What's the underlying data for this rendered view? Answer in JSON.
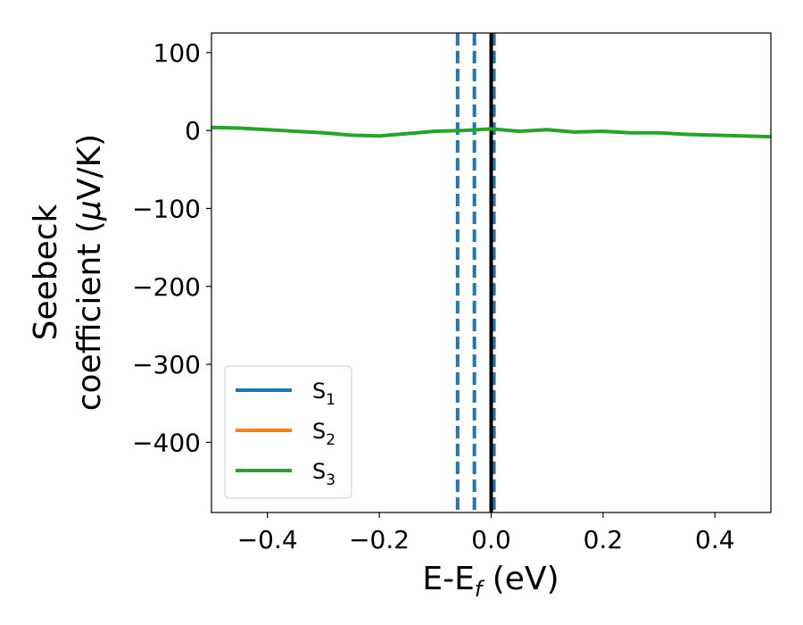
{
  "chart_data": {
    "type": "line",
    "xlabel": "E-E",
    "xlabel_sub": "f",
    "xlabel_unit": " (eV)",
    "ylabel_line1": "Seebeck",
    "ylabel_line2": "coefficient  (",
    "ylabel_mu": "μ",
    "ylabel_unit": "V/K)",
    "xlim": [
      -0.5,
      0.5
    ],
    "ylim": [
      -490,
      125
    ],
    "xticks": [
      -0.4,
      -0.2,
      0.0,
      0.2,
      0.4
    ],
    "xtick_labels": [
      "−0.4",
      "−0.2",
      "0.0",
      "0.2",
      "0.4"
    ],
    "yticks": [
      100,
      0,
      -100,
      -200,
      -300,
      -400
    ],
    "ytick_labels": [
      "100",
      "0",
      "−100",
      "−200",
      "−300",
      "−400"
    ],
    "grid": false,
    "legend_position": "lower-left",
    "series": [
      {
        "name": "S",
        "sub": "1",
        "color": "#1f77b4",
        "x": [],
        "y": []
      },
      {
        "name": "S",
        "sub": "2",
        "color": "#ff7f0e",
        "x": [],
        "y": []
      },
      {
        "name": "S",
        "sub": "3",
        "color": "#2ca02c",
        "x": [
          -0.5,
          -0.45,
          -0.4,
          -0.35,
          -0.3,
          -0.25,
          -0.2,
          -0.15,
          -0.1,
          -0.05,
          0.0,
          0.05,
          0.1,
          0.15,
          0.2,
          0.25,
          0.3,
          0.35,
          0.4,
          0.45,
          0.5
        ],
        "y": [
          4,
          3,
          1,
          -1,
          -3,
          -6,
          -7,
          -4,
          -1,
          0,
          2,
          -1,
          1,
          -2,
          -1,
          -3,
          -3,
          -5,
          -6,
          -7,
          -8
        ]
      }
    ],
    "vlines": [
      {
        "x": -0.06,
        "style": "dashed",
        "color": "#1f77b4"
      },
      {
        "x": -0.03,
        "style": "dashed",
        "color": "#1f77b4"
      },
      {
        "x": 0.005,
        "style": "dashed",
        "color": "#1f77b4"
      },
      {
        "x": 0.0,
        "style": "solid",
        "color": "#000000"
      }
    ]
  }
}
